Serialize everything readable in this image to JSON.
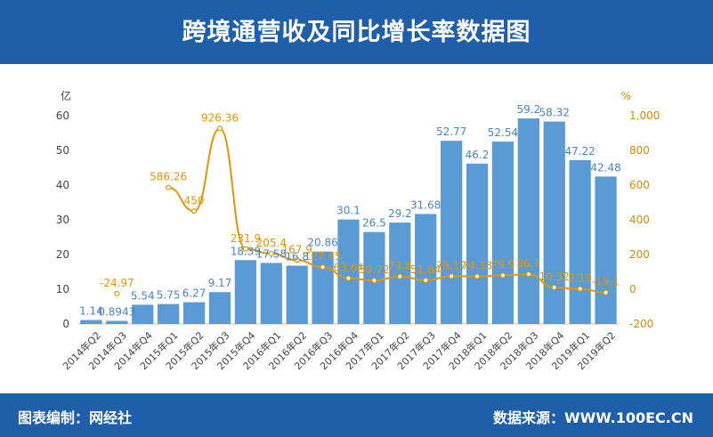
{
  "header": {
    "title": "跨境通营收及同比增长率数据图"
  },
  "footer": {
    "left": "图表编制：网经社",
    "right": "数据来源：WWW.100EC.CN"
  },
  "colors": {
    "header_bg": "#1f5ea8",
    "bar": "#5b9bd5",
    "line": "#e39600",
    "bar_label": "#4a86c8"
  },
  "chart_data": {
    "type": "bar",
    "title": "跨境通营收及同比增长率数据图",
    "categories": [
      "2014年Q2",
      "2014年Q3",
      "2014年Q4",
      "2015年Q1",
      "2015年Q2",
      "2015年Q3",
      "2015年Q4",
      "2016年Q1",
      "2016年Q2",
      "2016年Q3",
      "2016年Q4",
      "2017年Q1",
      "2017年Q2",
      "2017年Q3",
      "2017年Q4",
      "2018年Q1",
      "2018年Q2",
      "2018年Q3",
      "2018年Q4",
      "2019年Q1",
      "2019年Q2"
    ],
    "y_left": {
      "unit": "亿",
      "ylim": [
        0,
        60
      ],
      "ticks": [
        "0",
        "10",
        "20",
        "30",
        "40",
        "50",
        "60"
      ]
    },
    "y_right": {
      "unit": "%",
      "ylim": [
        -200,
        1000
      ],
      "ticks": [
        "-200",
        "0",
        "200",
        "400",
        "600",
        "800",
        "1,000"
      ]
    },
    "series": [
      {
        "type": "bar",
        "axis": "left",
        "values": [
          1.14,
          0.8943,
          5.54,
          5.75,
          6.27,
          9.17,
          18.39,
          17.58,
          16.8,
          20.86,
          30.1,
          26.5,
          29.2,
          31.68,
          52.77,
          46.2,
          52.54,
          59.2,
          58.32,
          47.22,
          42.48
        ],
        "labels": [
          "1.14",
          "0.8943",
          "5.54",
          "5.75",
          "6.27",
          "9.17",
          "18.39",
          "17.58",
          "16.8",
          "20.86",
          "30.1",
          "26.5",
          "29.2",
          "31.68",
          "52.77",
          "46.2",
          "52.54",
          "59.2",
          "58.32",
          "47.22",
          "42.48"
        ]
      },
      {
        "type": "line",
        "axis": "right",
        "values": [
          null,
          -24.97,
          null,
          586.26,
          450,
          926.36,
          231.9,
          205.4,
          167.9,
          127.45,
          63.64,
          50.72,
          73.8,
          51.84,
          75.17,
          74.33,
          79.9,
          86.7,
          10.32,
          2.19,
          -19.1
        ],
        "labels": [
          "",
          "-24.97",
          "",
          "586.26",
          "450",
          "926.36",
          "231.9",
          "205.4",
          "167.9",
          "127.45",
          "63.64",
          "50.72",
          "73.8",
          "51.84",
          "75.17",
          "74.33",
          "79.9",
          "86.7",
          "10.32",
          "2.19",
          "-19.1"
        ]
      }
    ],
    "legend": "none",
    "grid": false
  }
}
